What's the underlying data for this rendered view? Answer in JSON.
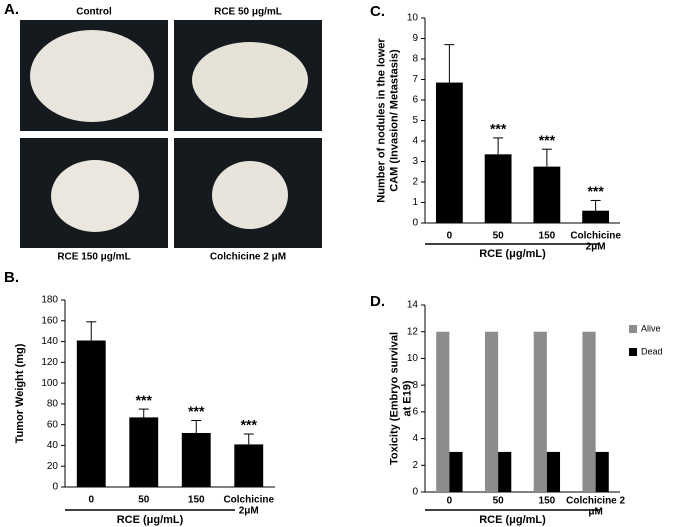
{
  "panel_a": {
    "label": "A.",
    "captions": [
      "Control",
      "RCE 50 μg/mL",
      "RCE 150 μg/mL",
      "Colchicine 2 μM"
    ]
  },
  "chart_data": [
    {
      "type": "bar",
      "panel_label": "B.",
      "ylabel": [
        "Tumor Weight (mg)"
      ],
      "xlabel": "RCE (μg/mL)",
      "categories": [
        "0",
        "50",
        "150",
        [
          "Colchicine",
          "2μM"
        ]
      ],
      "values": [
        141,
        67,
        52,
        41
      ],
      "errors": [
        18,
        8,
        12,
        10
      ],
      "color": "#000000",
      "significance": [
        null,
        "***",
        "***",
        "***"
      ],
      "ylim": [
        0,
        180
      ],
      "yticks": [
        0,
        20,
        40,
        60,
        80,
        100,
        120,
        140,
        160,
        180
      ]
    },
    {
      "type": "bar",
      "panel_label": "C.",
      "ylabel": [
        "Number of nodules in the lower",
        "CAM (Invasion/ Metastasis)"
      ],
      "xlabel": "RCE (μg/mL)",
      "categories": [
        "0",
        "50",
        "150",
        [
          "Colchicine",
          "2μM"
        ]
      ],
      "values": [
        6.85,
        3.35,
        2.75,
        0.6
      ],
      "errors": [
        1.85,
        0.8,
        0.85,
        0.5
      ],
      "color": "#000000",
      "significance": [
        null,
        "***",
        "***",
        "***"
      ],
      "ylim": [
        0,
        10
      ],
      "yticks": [
        0,
        1,
        2,
        3,
        4,
        5,
        6,
        7,
        8,
        9,
        10
      ]
    },
    {
      "type": "grouped-bar",
      "panel_label": "D.",
      "ylabel": [
        "Toxicity (Embryo survival",
        "at E19)"
      ],
      "xlabel": "RCE (μg/mL)",
      "categories": [
        "0",
        "50",
        "150",
        [
          "Colchicine 2",
          "μM"
        ]
      ],
      "series": [
        {
          "name": "Alive",
          "color": "#8c8c8c",
          "values": [
            12,
            12,
            12,
            12
          ]
        },
        {
          "name": "Dead",
          "color": "#000000",
          "values": [
            3,
            3,
            3,
            3
          ]
        }
      ],
      "legend": "right",
      "ylim": [
        0,
        14
      ],
      "yticks": [
        0,
        2,
        4,
        6,
        8,
        10,
        12,
        14
      ]
    }
  ]
}
